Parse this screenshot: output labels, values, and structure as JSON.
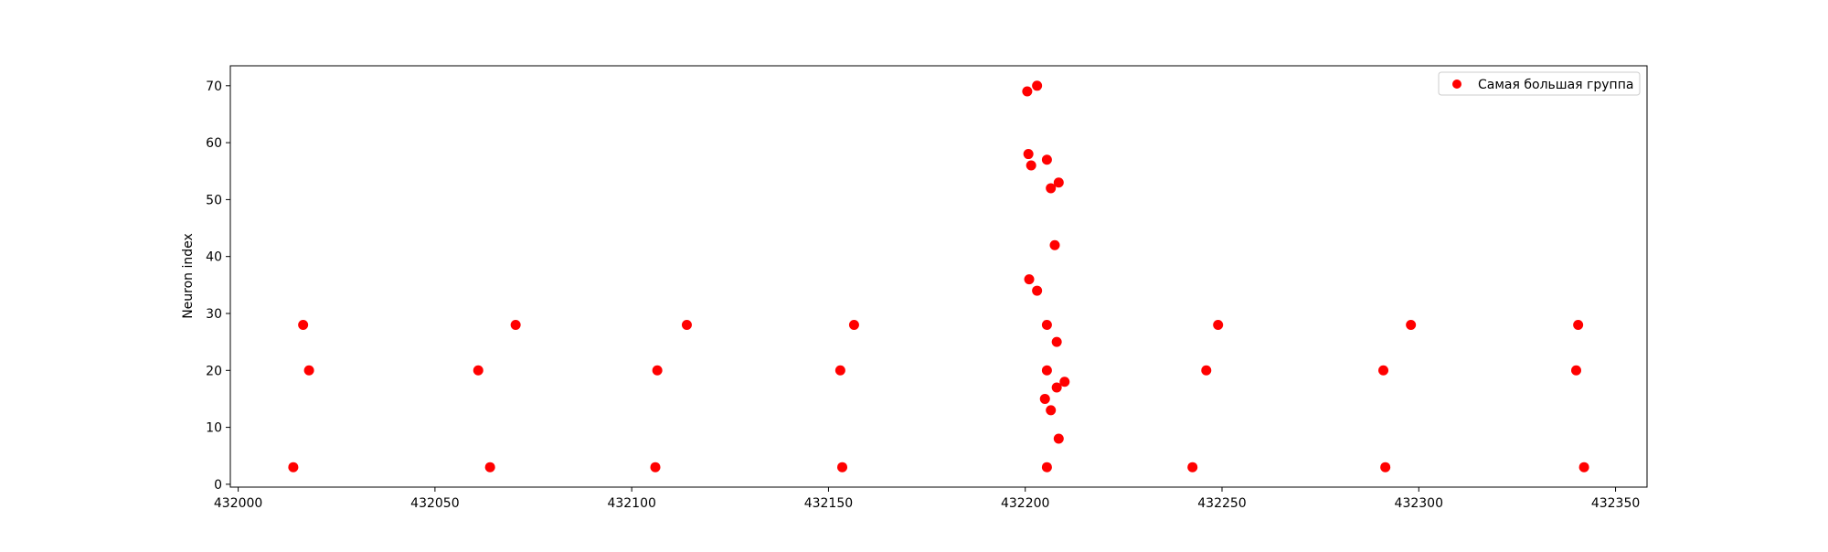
{
  "chart_data": {
    "type": "scatter",
    "title": "",
    "xlabel": "",
    "ylabel": "Neuron index",
    "xlim": [
      431998,
      432358
    ],
    "ylim": [
      -0.5,
      73.5
    ],
    "xticks": [
      432000,
      432050,
      432100,
      432150,
      432200,
      432250,
      432300,
      432350
    ],
    "xtick_labels": [
      "432000",
      "432050",
      "432100",
      "432150",
      "432200",
      "432250",
      "432300",
      "432350"
    ],
    "yticks": [
      0,
      10,
      20,
      30,
      40,
      50,
      60,
      70
    ],
    "ytick_labels": [
      "0",
      "10",
      "20",
      "30",
      "40",
      "50",
      "60",
      "70"
    ],
    "grid": false,
    "legend_position": "top-right",
    "series": [
      {
        "name": "Самая большая группа",
        "color": "#ff0000",
        "points": [
          {
            "x": 432014,
            "y": 3
          },
          {
            "x": 432016.5,
            "y": 28
          },
          {
            "x": 432018,
            "y": 20
          },
          {
            "x": 432061,
            "y": 20
          },
          {
            "x": 432064,
            "y": 3
          },
          {
            "x": 432070.5,
            "y": 28
          },
          {
            "x": 432106,
            "y": 3
          },
          {
            "x": 432106.5,
            "y": 20
          },
          {
            "x": 432114,
            "y": 28
          },
          {
            "x": 432153,
            "y": 20
          },
          {
            "x": 432153.5,
            "y": 3
          },
          {
            "x": 432156.5,
            "y": 28
          },
          {
            "x": 432200.5,
            "y": 69
          },
          {
            "x": 432203,
            "y": 70
          },
          {
            "x": 432200.8,
            "y": 58
          },
          {
            "x": 432201.5,
            "y": 56
          },
          {
            "x": 432205.5,
            "y": 57
          },
          {
            "x": 432208.5,
            "y": 53
          },
          {
            "x": 432206.5,
            "y": 52
          },
          {
            "x": 432207.5,
            "y": 42
          },
          {
            "x": 432201,
            "y": 36
          },
          {
            "x": 432203,
            "y": 34
          },
          {
            "x": 432205.5,
            "y": 28
          },
          {
            "x": 432208,
            "y": 25
          },
          {
            "x": 432205.5,
            "y": 20
          },
          {
            "x": 432210,
            "y": 18
          },
          {
            "x": 432208,
            "y": 17
          },
          {
            "x": 432205,
            "y": 15
          },
          {
            "x": 432206.5,
            "y": 13
          },
          {
            "x": 432208.5,
            "y": 8
          },
          {
            "x": 432205.5,
            "y": 3
          },
          {
            "x": 432242.5,
            "y": 3
          },
          {
            "x": 432246,
            "y": 20
          },
          {
            "x": 432249,
            "y": 28
          },
          {
            "x": 432291,
            "y": 20
          },
          {
            "x": 432291.5,
            "y": 3
          },
          {
            "x": 432298,
            "y": 28
          },
          {
            "x": 432340,
            "y": 20
          },
          {
            "x": 432340.5,
            "y": 28
          },
          {
            "x": 432342,
            "y": 3
          }
        ]
      }
    ]
  }
}
